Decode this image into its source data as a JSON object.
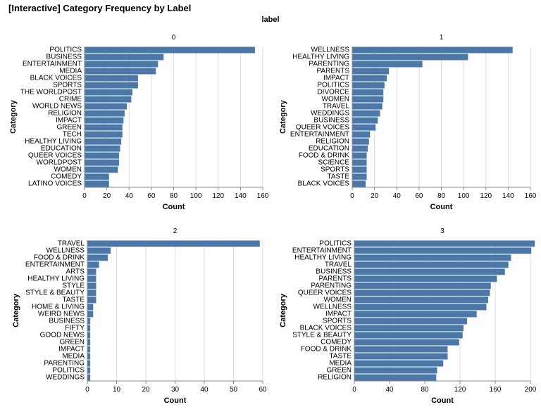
{
  "title": "[Interactive] Category Frequency by Label",
  "facet_header": "label",
  "colors": {
    "bar": "#4c78a8",
    "grid": "#dddddd",
    "axis": "#888888"
  },
  "chart_data": [
    {
      "type": "bar",
      "orientation": "horizontal",
      "facet": "0",
      "xlabel": "Count",
      "ylabel": "Category",
      "xlim": [
        0,
        160
      ],
      "xticks": [
        0,
        20,
        40,
        60,
        80,
        100,
        120,
        140,
        160
      ],
      "categories": [
        "POLITICS",
        "BUSINESS",
        "ENTERTAINMENT",
        "MEDIA",
        "BLACK VOICES",
        "SPORTS",
        "THE WORLDPOST",
        "CRIME",
        "WORLD NEWS",
        "RELIGION",
        "IMPACT",
        "GREEN",
        "TECH",
        "HEALTHY LIVING",
        "EDUCATION",
        "QUEER VOICES",
        "WORLDPOST",
        "WOMEN",
        "COMEDY",
        "LATINO VOICES"
      ],
      "values": [
        153,
        71,
        66,
        64,
        48,
        48,
        43,
        42,
        38,
        36,
        35,
        34,
        34,
        33,
        32,
        31,
        31,
        30,
        22,
        22
      ]
    },
    {
      "type": "bar",
      "orientation": "horizontal",
      "facet": "1",
      "xlabel": "Count",
      "ylabel": "Category",
      "xlim": [
        0,
        160
      ],
      "xticks": [
        0,
        20,
        40,
        60,
        80,
        100,
        120,
        140,
        160
      ],
      "categories": [
        "WELLNESS",
        "HEALTHY LIVING",
        "PARENTING",
        "PARENTS",
        "IMPACT",
        "POLITICS",
        "DIVORCE",
        "WOMEN",
        "TRAVEL",
        "WEDDINGS",
        "BUSINESS",
        "QUEER VOICES",
        "ENTERTAINMENT",
        "RELIGION",
        "EDUCATION",
        "FOOD & DRINK",
        "SCIENCE",
        "SPORTS",
        "TASTE",
        "BLACK VOICES"
      ],
      "values": [
        144,
        104,
        63,
        33,
        31,
        29,
        28,
        28,
        27,
        25,
        23,
        21,
        16,
        15,
        14,
        13,
        13,
        13,
        13,
        12
      ]
    },
    {
      "type": "bar",
      "orientation": "horizontal",
      "facet": "2",
      "xlabel": "Count",
      "ylabel": "Category",
      "xlim": [
        0,
        60
      ],
      "xticks": [
        0,
        10,
        20,
        30,
        40,
        50,
        60
      ],
      "categories": [
        "TRAVEL",
        "WELLNESS",
        "FOOD & DRINK",
        "ENTERTAINMENT",
        "ARTS",
        "HEALTHY LIVING",
        "STYLE",
        "STYLE & BEAUTY",
        "TASTE",
        "HOME & LIVING",
        "WEIRD NEWS",
        "BUSINESS",
        "FIFTY",
        "GOOD NEWS",
        "GREEN",
        "IMPACT",
        "MEDIA",
        "PARENTING",
        "POLITICS",
        "WEDDINGS"
      ],
      "values": [
        59,
        8,
        7,
        4,
        3,
        3,
        3,
        3,
        3,
        2,
        2,
        1,
        1,
        1,
        1,
        1,
        1,
        1,
        1,
        1
      ]
    },
    {
      "type": "bar",
      "orientation": "horizontal",
      "facet": "3",
      "xlabel": "Count",
      "ylabel": "Category",
      "xlim": [
        0,
        200
      ],
      "xticks": [
        0,
        40,
        80,
        120,
        160,
        200
      ],
      "categories": [
        "POLITICS",
        "ENTERTAINMENT",
        "HEALTHY LIVING",
        "TRAVEL",
        "BUSINESS",
        "PARENTS",
        "PARENTING",
        "QUEER VOICES",
        "WOMEN",
        "WELLNESS",
        "IMPACT",
        "SPORTS",
        "BLACK VOICES",
        "STYLE & BEAUTY",
        "COMEDY",
        "FOOD & DRINK",
        "TASTE",
        "MEDIA",
        "GREEN",
        "RELIGION"
      ],
      "values": [
        205,
        201,
        178,
        175,
        171,
        162,
        155,
        154,
        152,
        150,
        139,
        128,
        124,
        123,
        119,
        106,
        106,
        101,
        94,
        93
      ]
    }
  ]
}
